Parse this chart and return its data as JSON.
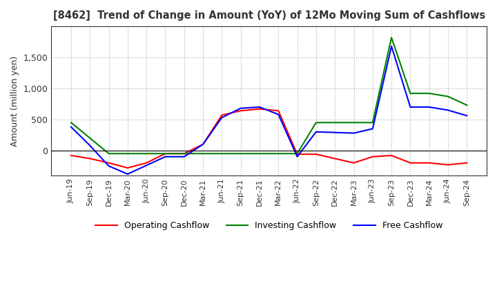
{
  "title": "[8462]  Trend of Change in Amount (YoY) of 12Mo Moving Sum of Cashflows",
  "ylabel": "Amount (million yen)",
  "x_labels": [
    "Jun-19",
    "Sep-19",
    "Dec-19",
    "Mar-20",
    "Jun-20",
    "Sep-20",
    "Dec-20",
    "Mar-21",
    "Jun-21",
    "Sep-21",
    "Dec-21",
    "Mar-22",
    "Jun-22",
    "Sep-22",
    "Dec-22",
    "Mar-23",
    "Jun-23",
    "Sep-23",
    "Dec-23",
    "Mar-24",
    "Jun-24",
    "Sep-24"
  ],
  "operating": [
    -80,
    -130,
    -200,
    -280,
    -200,
    -50,
    -50,
    100,
    570,
    640,
    670,
    640,
    -60,
    -60,
    -130,
    -200,
    -100,
    -80,
    -200,
    -200,
    -230,
    -200
  ],
  "investing": [
    450,
    200,
    -50,
    -50,
    -50,
    -50,
    -50,
    -50,
    -50,
    -50,
    -50,
    -50,
    -50,
    450,
    450,
    450,
    450,
    1820,
    920,
    920,
    870,
    730
  ],
  "free": [
    380,
    80,
    -250,
    -380,
    -240,
    -100,
    -100,
    100,
    530,
    680,
    700,
    580,
    -100,
    300,
    290,
    280,
    350,
    1680,
    700,
    700,
    650,
    560
  ],
  "operating_color": "#FF0000",
  "investing_color": "#008000",
  "free_color": "#0000FF",
  "ylim": [
    -400,
    2000
  ],
  "yticks": [
    0,
    500,
    1000,
    1500
  ],
  "background_color": "#FFFFFF",
  "grid_color": "#AAAAAA"
}
